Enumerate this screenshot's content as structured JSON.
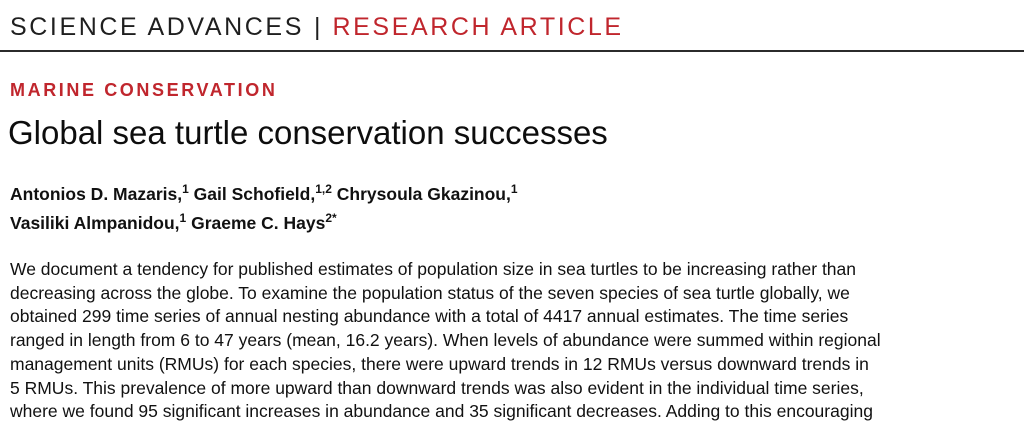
{
  "header": {
    "journal": "SCIENCE ADVANCES",
    "separator": "|",
    "article_type": "RESEARCH ARTICLE"
  },
  "section": "MARINE CONSERVATION",
  "title": "Global sea turtle conservation successes",
  "authors": [
    {
      "name": "Antonios D. Mazaris,",
      "aff": "1"
    },
    {
      "name": "Gail Schofield,",
      "aff": "1,2"
    },
    {
      "name": "Chrysoula Gkazinou,",
      "aff": "1"
    },
    {
      "name": "Vasiliki Almpanidou,",
      "aff": "1"
    },
    {
      "name": "Graeme C. Hays",
      "aff": "2*"
    }
  ],
  "abstract_lines": [
    "We document a tendency for published estimates of population size in sea turtles to be increasing rather than",
    "decreasing across the globe. To examine the population status of the seven species of sea turtle globally, we",
    "obtained 299 time series of annual nesting abundance with a total of 4417 annual estimates. The time series",
    "ranged in length from 6 to 47 years (mean, 16.2 years). When levels of abundance were summed within regional",
    "management units (RMUs) for each species, there were upward trends in 12 RMUs versus downward trends in",
    "5 RMUs. This prevalence of more upward than downward trends was also evident in the individual time series,",
    "where we found 95 significant increases in abundance and 35 significant decreases. Adding to this encouraging"
  ],
  "colors": {
    "accent": "#c0262d",
    "text": "#111111",
    "rule": "#2b2b2b"
  }
}
